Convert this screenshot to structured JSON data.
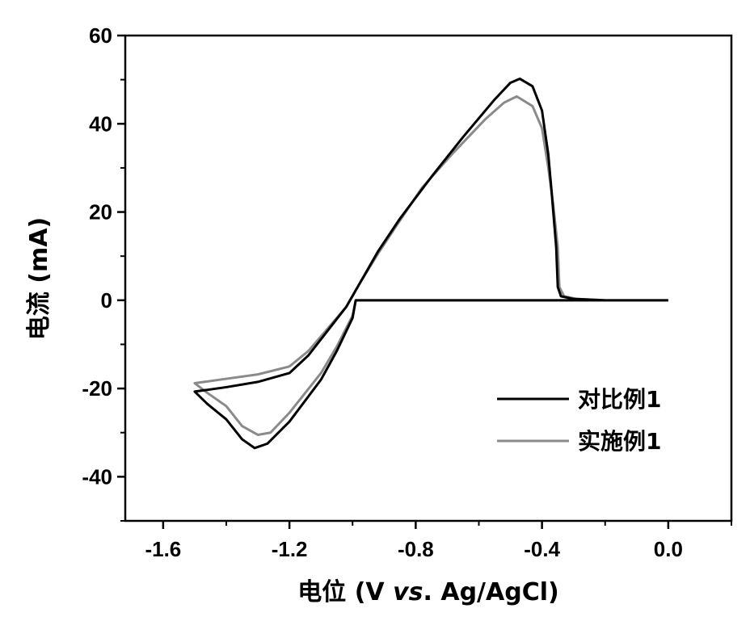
{
  "chart_data": {
    "type": "line",
    "title": "",
    "xlabel": "电位 (V vs. Ag/AgCl)",
    "xlabel_parts": {
      "prefix": "电位 (V ",
      "italic": "vs",
      "suffix": ". Ag/AgCl)"
    },
    "ylabel": "电流 (mA)",
    "xlim": [
      -1.72,
      0.2
    ],
    "ylim": [
      -50,
      60
    ],
    "xticks": [
      -1.6,
      -1.2,
      -0.8,
      -0.4,
      0.0
    ],
    "xtick_labels": [
      "-1.6",
      "-1.2",
      "-0.8",
      "-0.4",
      "0.0"
    ],
    "yticks": [
      -40,
      -20,
      0,
      20,
      40,
      60
    ],
    "ytick_labels": [
      "-40",
      "-20",
      "0",
      "20",
      "40",
      "60"
    ],
    "grid": false,
    "legend_position": "lower-right",
    "series": [
      {
        "name": "对比例1",
        "color": "#000000",
        "points": [
          [
            0.0,
            0
          ],
          [
            -0.2,
            0
          ],
          [
            -0.3,
            0.3
          ],
          [
            -0.34,
            0.9
          ],
          [
            -0.35,
            3
          ],
          [
            -0.355,
            12
          ],
          [
            -0.37,
            25
          ],
          [
            -0.38,
            33
          ],
          [
            -0.4,
            43
          ],
          [
            -0.43,
            48.5
          ],
          [
            -0.47,
            50.2
          ],
          [
            -0.5,
            49.3
          ],
          [
            -0.55,
            45.5
          ],
          [
            -0.65,
            37
          ],
          [
            -0.75,
            28
          ],
          [
            -0.85,
            18.5
          ],
          [
            -0.92,
            11
          ],
          [
            -0.98,
            3.5
          ],
          [
            -1.02,
            -1.5
          ],
          [
            -1.08,
            -7
          ],
          [
            -1.14,
            -12.5
          ],
          [
            -1.2,
            -16.5
          ],
          [
            -1.3,
            -18.5
          ],
          [
            -1.4,
            -19.7
          ],
          [
            -1.5,
            -20.7
          ],
          [
            -1.46,
            -23.5
          ],
          [
            -1.4,
            -27
          ],
          [
            -1.35,
            -31.5
          ],
          [
            -1.31,
            -33.5
          ],
          [
            -1.27,
            -32.5
          ],
          [
            -1.2,
            -27.5
          ],
          [
            -1.1,
            -18
          ],
          [
            -1.05,
            -11.5
          ],
          [
            -1.0,
            -4
          ],
          [
            -0.99,
            0
          ],
          [
            -0.8,
            0
          ],
          [
            -0.6,
            0
          ],
          [
            -0.4,
            0
          ],
          [
            -0.2,
            0
          ],
          [
            0.0,
            0
          ]
        ]
      },
      {
        "name": "实施例1",
        "color": "#8a8a8a",
        "points": [
          [
            0.0,
            0
          ],
          [
            -0.2,
            0
          ],
          [
            -0.29,
            0.3
          ],
          [
            -0.33,
            0.9
          ],
          [
            -0.345,
            3
          ],
          [
            -0.35,
            12
          ],
          [
            -0.365,
            22
          ],
          [
            -0.38,
            30
          ],
          [
            -0.4,
            39
          ],
          [
            -0.43,
            44
          ],
          [
            -0.48,
            46.2
          ],
          [
            -0.52,
            44.8
          ],
          [
            -0.58,
            41
          ],
          [
            -0.68,
            33.5
          ],
          [
            -0.78,
            25.5
          ],
          [
            -0.86,
            17
          ],
          [
            -0.92,
            10.5
          ],
          [
            -0.98,
            3.5
          ],
          [
            -1.02,
            -1.5
          ],
          [
            -1.08,
            -6.5
          ],
          [
            -1.14,
            -11.5
          ],
          [
            -1.2,
            -15
          ],
          [
            -1.3,
            -16.8
          ],
          [
            -1.4,
            -17.8
          ],
          [
            -1.5,
            -18.8
          ],
          [
            -1.46,
            -21
          ],
          [
            -1.4,
            -24
          ],
          [
            -1.35,
            -28.5
          ],
          [
            -1.3,
            -30.5
          ],
          [
            -1.26,
            -30
          ],
          [
            -1.2,
            -25.5
          ],
          [
            -1.1,
            -16.5
          ],
          [
            -1.05,
            -10.5
          ],
          [
            -1.0,
            -3.5
          ],
          [
            -0.99,
            0
          ],
          [
            -0.8,
            0
          ],
          [
            -0.6,
            0
          ],
          [
            -0.4,
            0
          ],
          [
            -0.2,
            0
          ],
          [
            0.0,
            0
          ]
        ]
      }
    ]
  }
}
